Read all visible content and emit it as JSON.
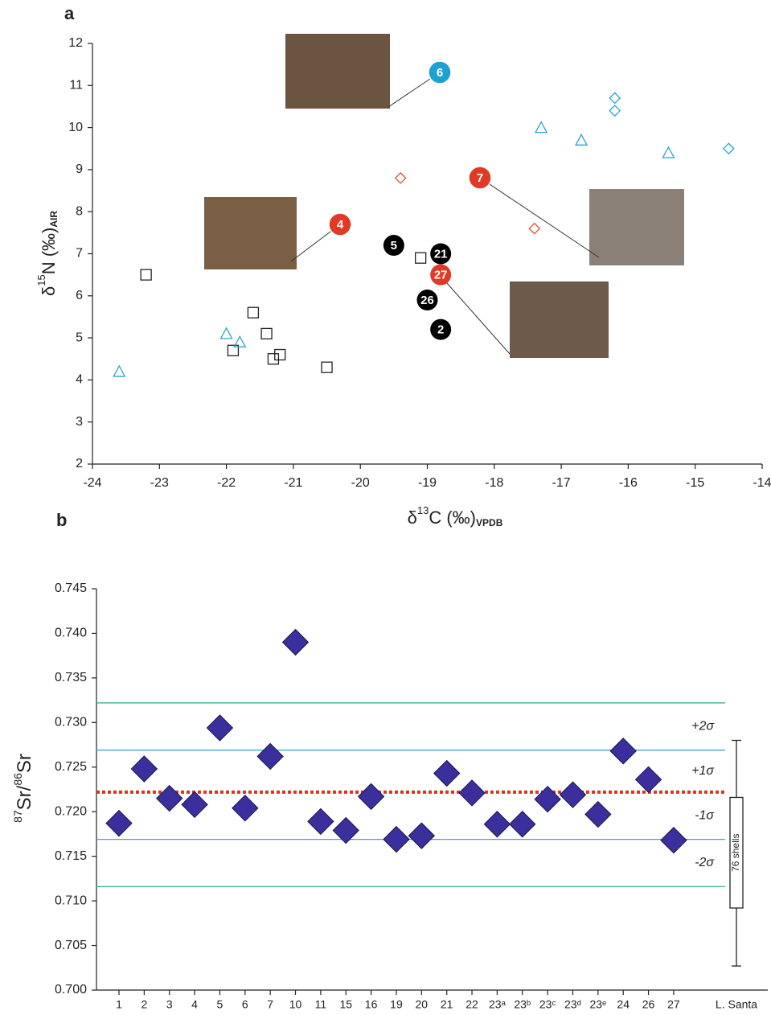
{
  "chart_data": [
    {
      "type": "scatter",
      "panel_label": "a",
      "xlabel": {
        "symbol": "δ",
        "sup": "13",
        "main": "C (‰)",
        "sub": "VPDB"
      },
      "ylabel": {
        "symbol": "δ",
        "sup": "15",
        "main": "N (‰)",
        "sub": "AIR"
      },
      "xlim": [
        -24,
        -14
      ],
      "xticks": [
        -24,
        -23,
        -22,
        -21,
        -20,
        -19,
        -18,
        -17,
        -16,
        -15,
        -14
      ],
      "ylim": [
        2,
        12
      ],
      "yticks": [
        2,
        3,
        4,
        5,
        6,
        7,
        8,
        9,
        10,
        11,
        12
      ],
      "series": [
        {
          "marker": "square",
          "color": "#222222",
          "x": [
            -23.2,
            -21.6,
            -21.4,
            -21.9,
            -21.3,
            -21.2,
            -20.5,
            -19.1
          ],
          "values": [
            6.5,
            5.6,
            5.1,
            4.7,
            4.5,
            4.6,
            4.3,
            6.9
          ]
        },
        {
          "marker": "triangle",
          "color": "#26a6c9",
          "x": [
            -23.6,
            -22.0,
            -21.8,
            -17.3,
            -16.7,
            -15.4
          ],
          "values": [
            4.2,
            5.1,
            4.9,
            10.0,
            9.7,
            9.4
          ]
        },
        {
          "marker": "diamond",
          "color": "#26a6c9",
          "x": [
            -16.2,
            -16.2,
            -14.5
          ],
          "values": [
            10.7,
            10.4,
            9.5
          ]
        },
        {
          "marker": "diamond",
          "color": "#d9532f",
          "x": [
            -19.4,
            -17.4
          ],
          "values": [
            8.8,
            7.6
          ]
        },
        {
          "marker": "circle",
          "color": "#000000",
          "x": [
            -19.5,
            -18.8,
            -19.0,
            -18.8
          ],
          "values": [
            7.2,
            7.0,
            5.9,
            5.2
          ],
          "labels": [
            "5",
            "21",
            "26",
            "2"
          ]
        },
        {
          "marker": "circle",
          "color": "#e03a26",
          "x": [
            -18.8
          ],
          "values": [
            6.5
          ],
          "labels": [
            "27"
          ]
        }
      ],
      "annotations": [
        {
          "label": "6",
          "color": "#1ea0d2"
        },
        {
          "label": "4",
          "color": "#e03a26"
        },
        {
          "label": "7",
          "color": "#e03a26"
        }
      ]
    },
    {
      "type": "strip",
      "panel_label": "b",
      "ylabel": {
        "sup1": "87",
        "text1": "Sr/",
        "sup2": "86",
        "text2": "Sr"
      },
      "ylim": [
        0.7,
        0.745
      ],
      "yticks": [
        {
          "value": 0.7,
          "label": "0.700"
        },
        0.705,
        {
          "value": 0.71,
          "label": "0.710"
        },
        0.715,
        {
          "value": 0.72,
          "label": "0.720"
        },
        0.725,
        {
          "value": 0.73,
          "label": "0.730"
        },
        0.735,
        {
          "value": 0.74,
          "label": "0.740"
        },
        0.745
      ],
      "categories": [
        "1",
        "2",
        "3",
        "4",
        "5",
        "6",
        "7",
        "10",
        "11",
        "15",
        "16",
        "19",
        "20",
        "21",
        "22",
        "23ᵃ",
        "23ᵇ",
        "23ᶜ",
        "23ᵈ",
        "23ᵉ",
        "24",
        "26",
        "27"
      ],
      "color": "#3a2f9c",
      "values": [
        0.7187,
        0.7248,
        0.7215,
        0.7208,
        0.7294,
        0.7204,
        0.7262,
        0.739,
        0.7189,
        0.7179,
        0.7217,
        0.7169,
        0.7173,
        0.7243,
        0.7221,
        0.7186,
        0.7186,
        0.7214,
        0.7219,
        0.7197,
        0.7268,
        0.7236,
        0.7168
      ],
      "hlines": [
        {
          "value": 0.7322,
          "color": "#3cb38a",
          "style": "solid"
        },
        {
          "value": 0.7269,
          "color": "#3aa6d8",
          "style": "solid"
        },
        {
          "value": 0.7222,
          "color": "#e0301e",
          "style": "dotted"
        },
        {
          "value": 0.7169,
          "color": "#3aa6d8",
          "style": "solid"
        },
        {
          "value": 0.7116,
          "color": "#3cb38a",
          "style": "solid"
        }
      ],
      "band_labels": [
        "+2σ",
        "+1σ",
        "-1σ",
        "-2σ"
      ],
      "box": {
        "name": "L. Santa",
        "label": "76 shells",
        "whislo": 0.7027,
        "q1": 0.7092,
        "q3": 0.7216,
        "whishi": 0.728
      }
    }
  ]
}
